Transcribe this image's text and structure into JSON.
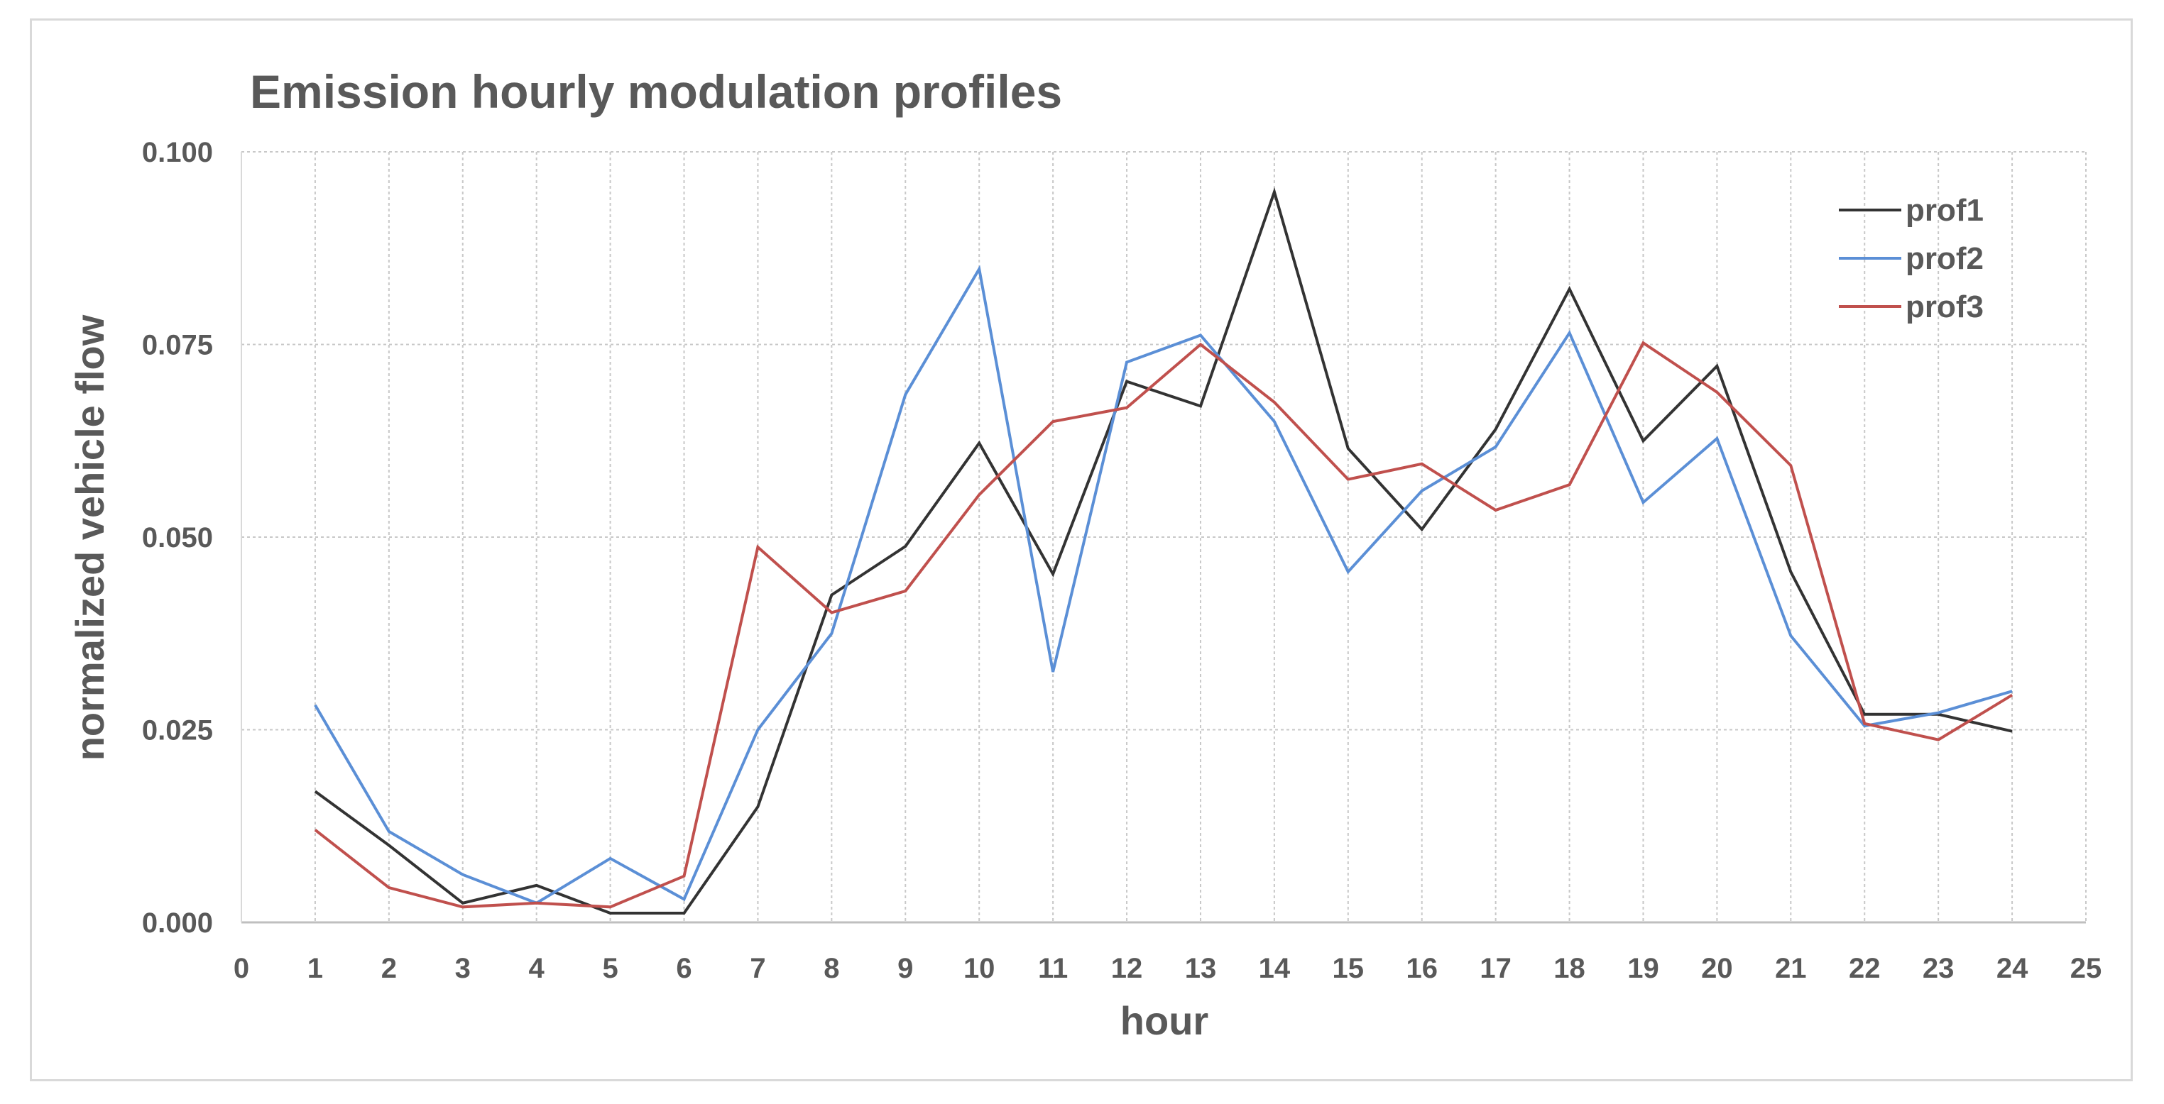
{
  "chart_data": {
    "type": "line",
    "title": "Emission hourly modulation profiles",
    "xlabel": "hour",
    "ylabel": "normalized vehicle flow",
    "xlim": [
      0,
      25
    ],
    "ylim": [
      0,
      0.1
    ],
    "x_ticks": [
      "0",
      "1",
      "2",
      "3",
      "4",
      "5",
      "6",
      "7",
      "8",
      "9",
      "10",
      "11",
      "12",
      "13",
      "14",
      "15",
      "16",
      "17",
      "18",
      "19",
      "20",
      "21",
      "22",
      "23",
      "24",
      "25"
    ],
    "y_ticks": [
      "0.000",
      "0.025",
      "0.050",
      "0.075",
      "0.100"
    ],
    "grid": true,
    "legend_position": "top-right",
    "x": [
      1,
      2,
      3,
      4,
      5,
      6,
      7,
      8,
      9,
      10,
      11,
      12,
      13,
      14,
      15,
      16,
      17,
      18,
      19,
      20,
      21,
      22,
      23,
      24
    ],
    "series": [
      {
        "name": "prof1",
        "color": "#333333",
        "values": [
          0.017,
          0.01,
          0.0025,
          0.0048,
          0.0012,
          0.0012,
          0.015,
          0.0425,
          0.0488,
          0.0622,
          0.0452,
          0.0702,
          0.067,
          0.0948,
          0.0615,
          0.051,
          0.064,
          0.0822,
          0.0625,
          0.0722,
          0.0455,
          0.027,
          0.027,
          0.0248
        ]
      },
      {
        "name": "prof2",
        "color": "#5b8fd6",
        "values": [
          0.0282,
          0.0118,
          0.0062,
          0.0025,
          0.0083,
          0.003,
          0.025,
          0.0375,
          0.0685,
          0.0848,
          0.0325,
          0.0727,
          0.0762,
          0.065,
          0.0455,
          0.056,
          0.0617,
          0.0765,
          0.0545,
          0.0628,
          0.0372,
          0.0255,
          0.0272,
          0.03
        ]
      },
      {
        "name": "prof3",
        "color": "#c0504d",
        "values": [
          0.012,
          0.0045,
          0.002,
          0.0025,
          0.002,
          0.006,
          0.0487,
          0.0402,
          0.043,
          0.0555,
          0.065,
          0.0668,
          0.075,
          0.0675,
          0.0575,
          0.0595,
          0.0535,
          0.0568,
          0.0752,
          0.0688,
          0.0593,
          0.0258,
          0.0237,
          0.0295
        ]
      }
    ]
  }
}
